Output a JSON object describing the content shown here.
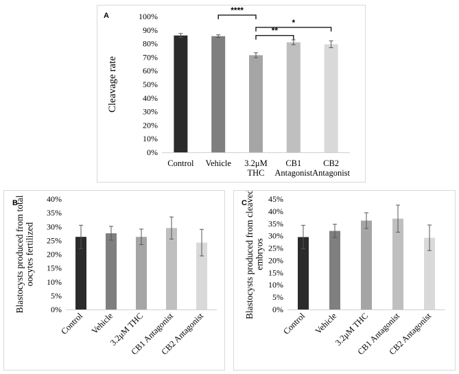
{
  "chart_data": [
    {
      "panel": "A",
      "type": "bar",
      "ylabel": "Cleavage rate",
      "ylim": [
        0,
        100
      ],
      "yticks": [
        "0%",
        "10%",
        "20%",
        "30%",
        "40%",
        "50%",
        "60%",
        "70%",
        "80%",
        "90%",
        "100%"
      ],
      "categories": [
        {
          "lines": [
            "Control"
          ]
        },
        {
          "lines": [
            "Vehicle"
          ]
        },
        {
          "lines": [
            "3.2μM",
            "THC"
          ]
        },
        {
          "lines": [
            "CB1",
            "Antagonist"
          ]
        },
        {
          "lines": [
            "CB2",
            "Antagonist"
          ]
        }
      ],
      "values": [
        86,
        85.5,
        71.5,
        81,
        79.5
      ],
      "errors": [
        1.5,
        1,
        1.8,
        1.8,
        2.5
      ],
      "colors": [
        "#2b2b2b",
        "#7f7f7f",
        "#a5a5a5",
        "#bfbfbf",
        "#d9d9d9"
      ],
      "significance": [
        {
          "from": 1,
          "to": 2,
          "label": "****",
          "level": 101
        },
        {
          "from": 2,
          "to": 4,
          "label": "*",
          "level": 92
        },
        {
          "from": 2,
          "to": 3,
          "label": "**",
          "level": 86
        }
      ]
    },
    {
      "panel": "B",
      "type": "bar",
      "ylabel": [
        "Blastocysts produced from total",
        "oocytes fertilized"
      ],
      "ylim": [
        0,
        40
      ],
      "yticks": [
        "0%",
        "5%",
        "10%",
        "15%",
        "20%",
        "25%",
        "30%",
        "35%",
        "40%"
      ],
      "categories": [
        "Control",
        "Vehicle",
        "3.2μM THC",
        "CB1 Antagonist",
        "CB2 Antagonist"
      ],
      "values": [
        26.3,
        27.6,
        26.3,
        29.5,
        24.2
      ],
      "errors": [
        4.2,
        2.5,
        2.8,
        4,
        4.8
      ],
      "colors": [
        "#2b2b2b",
        "#7f7f7f",
        "#a5a5a5",
        "#bfbfbf",
        "#d9d9d9"
      ]
    },
    {
      "panel": "C",
      "type": "bar",
      "ylabel": [
        "Blastocysts produced from cleaved",
        "embryos"
      ],
      "ylim": [
        0,
        45
      ],
      "yticks": [
        "0%",
        "5%",
        "10%",
        "15%",
        "20%",
        "25%",
        "30%",
        "35%",
        "40%",
        "45%"
      ],
      "categories": [
        "Control",
        "Vehicle",
        "3.2μM THC",
        "CB1 Antagonist",
        "CB2 Antagonist"
      ],
      "values": [
        29.5,
        32,
        36.2,
        37,
        29.2
      ],
      "errors": [
        4.8,
        2.7,
        3.2,
        5.5,
        5.2
      ],
      "colors": [
        "#2b2b2b",
        "#7f7f7f",
        "#a5a5a5",
        "#bfbfbf",
        "#d9d9d9"
      ]
    }
  ]
}
